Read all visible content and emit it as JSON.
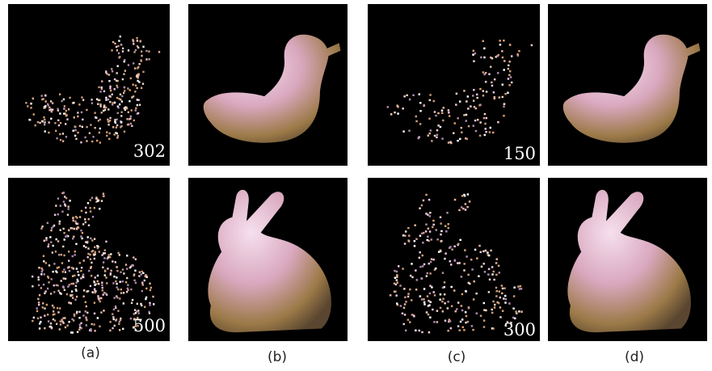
{
  "figure": {
    "point_counts": [
      302,
      150,
      500,
      300
    ],
    "captions": [
      "(a)",
      "(b)",
      "(c)",
      "(d)"
    ]
  }
}
